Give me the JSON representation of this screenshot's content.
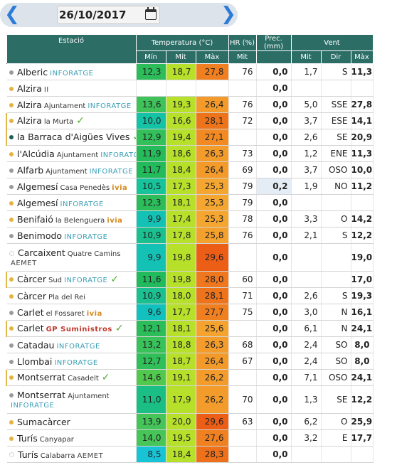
{
  "date": {
    "value": "26/10/2017",
    "prev_icon": "chevron-left-icon",
    "next_icon": "chevron-right-icon",
    "calendar_icon": "calendar-icon"
  },
  "columns": {
    "station": "Estació",
    "temperature": "Temperatura (°C)",
    "hr": "HR (%)",
    "prec": "Prec. (mm)",
    "wind": "Vent",
    "t_min": "Mín",
    "t_mit": "Mit",
    "t_max": "Màx",
    "hr_mit": "Mit",
    "w_mit": "Mit",
    "w_dir": "Dir",
    "w_max": "Màx"
  },
  "colors": {
    "header": "#2c6d66",
    "t_min_scale": [
      "#1db85a",
      "#4bc65a",
      "#8fd24a",
      "#14c1a8",
      "#2fd0b0"
    ],
    "t_mit": "#b6e02a",
    "t_max": "#f08a22"
  },
  "rows": [
    {
      "name": "Alberic",
      "loc": "",
      "src": "INFORATGE",
      "srcType": "info",
      "check": false,
      "dot": "gray",
      "mark": false,
      "tmin": "12,3",
      "tmit": "18,7",
      "tmax": "27,8",
      "tminColor": "#2cbd5a",
      "tmaxColor": "#f07f1f",
      "hr": "76",
      "prec": "0,0",
      "wet": false,
      "wmit": "1,7",
      "wdir": "S",
      "wmax": "11,3"
    },
    {
      "name": "Alzira",
      "loc": "",
      "src": "II",
      "srcType": "aemet",
      "check": false,
      "dot": "gold",
      "mark": false,
      "tmin": "",
      "tmit": "",
      "tmax": "",
      "tminColor": "",
      "tmaxColor": "",
      "hr": "",
      "prec": "0,0",
      "wet": false,
      "wmit": "",
      "wdir": "",
      "wmax": ""
    },
    {
      "name": "Alzira",
      "loc": "Ajuntament",
      "src": "INFORATGE",
      "srcType": "info",
      "check": false,
      "dot": "gold",
      "mark": false,
      "tmin": "13,6",
      "tmit": "19,3",
      "tmax": "26,4",
      "tminColor": "#3fc25a",
      "tmaxColor": "#f39a2a",
      "hr": "76",
      "prec": "0,0",
      "wet": false,
      "wmit": "5,0",
      "wdir": "SSE",
      "wmax": "27,8"
    },
    {
      "name": "Alzira",
      "loc": "la Murta",
      "src": "",
      "srcType": "",
      "check": true,
      "dot": "gold",
      "mark": true,
      "tmin": "10,0",
      "tmit": "16,6",
      "tmax": "28,1",
      "tminColor": "#14c3a6",
      "tmaxColor": "#ee741c",
      "hr": "72",
      "prec": "0,0",
      "wet": false,
      "wmit": "3,7",
      "wdir": "ESE",
      "wmax": "14,1"
    },
    {
      "name": "la Barraca d'Aigües Vives",
      "loc": "",
      "src": "",
      "srcType": "",
      "check": true,
      "dot": "teal",
      "mark": true,
      "tmin": "12,9",
      "tmit": "19,4",
      "tmax": "27,1",
      "tminColor": "#33bf5a",
      "tmaxColor": "#f28a24",
      "hr": "",
      "prec": "0,0",
      "wet": false,
      "wmit": "2,6",
      "wdir": "SE",
      "wmax": "20,9"
    },
    {
      "name": "l'Alcúdia",
      "loc": "Ajuntament",
      "src": "INFORATGE",
      "srcType": "info",
      "check": false,
      "dot": "gold",
      "mark": false,
      "tmin": "11,9",
      "tmit": "18,6",
      "tmax": "26,3",
      "tminColor": "#26bb5a",
      "tmaxColor": "#f39b2b",
      "hr": "73",
      "prec": "0,0",
      "wet": false,
      "wmit": "1,2",
      "wdir": "ENE",
      "wmax": "11,3"
    },
    {
      "name": "Alfarb",
      "loc": "Ajuntament",
      "src": "INFORATGE",
      "srcType": "info",
      "check": false,
      "dot": "gray",
      "mark": false,
      "tmin": "11,7",
      "tmit": "18,4",
      "tmax": "26,4",
      "tminColor": "#22ba5b",
      "tmaxColor": "#f39a2a",
      "hr": "69",
      "prec": "0,0",
      "wet": false,
      "wmit": "3,7",
      "wdir": "OSO",
      "wmax": "10,0"
    },
    {
      "name": "Algemesí",
      "loc": "Casa Penedès",
      "src": "ivia",
      "srcType": "ivia",
      "check": false,
      "dot": "gray",
      "mark": false,
      "tmin": "10,5",
      "tmit": "17,3",
      "tmax": "25,3",
      "tminColor": "#17c39b",
      "tmaxColor": "#f5a630",
      "hr": "79",
      "prec": "0,2",
      "wet": true,
      "wmit": "1,9",
      "wdir": "NO",
      "wmax": "11,2"
    },
    {
      "name": "Algemesí",
      "loc": "",
      "src": "INFORATGE",
      "srcType": "info",
      "check": false,
      "dot": "gold",
      "mark": false,
      "tmin": "12,3",
      "tmit": "18,1",
      "tmax": "25,3",
      "tminColor": "#2cbd5a",
      "tmaxColor": "#f5a630",
      "hr": "79",
      "prec": "0,0",
      "wet": false,
      "wmit": "",
      "wdir": "",
      "wmax": ""
    },
    {
      "name": "Benifaió",
      "loc": "la Belenguera",
      "src": "ivia",
      "srcType": "ivia",
      "check": false,
      "dot": "gold",
      "mark": false,
      "tmin": "9,9",
      "tmit": "17,4",
      "tmax": "25,3",
      "tminColor": "#13c2b4",
      "tmaxColor": "#f5a630",
      "hr": "78",
      "prec": "0,0",
      "wet": false,
      "wmit": "3,3",
      "wdir": "O",
      "wmax": "14,2"
    },
    {
      "name": "Benimodo",
      "loc": "",
      "src": "INFORATGE",
      "srcType": "info",
      "check": false,
      "dot": "gray",
      "mark": false,
      "tmin": "10,9",
      "tmit": "17,8",
      "tmax": "25,8",
      "tminColor": "#1ac090",
      "tmaxColor": "#f4a02c",
      "hr": "76",
      "prec": "0,0",
      "wet": false,
      "wmit": "2,1",
      "wdir": "S",
      "wmax": "12,2"
    },
    {
      "name": "Carcaixent",
      "loc": "Quatre Camins",
      "src": "AEMET",
      "srcType": "aemet",
      "check": false,
      "dot": "hollow",
      "mark": false,
      "tall": true,
      "tmin": "9,9",
      "tmit": "19,8",
      "tmax": "29,6",
      "tminColor": "#13c2b4",
      "tmaxColor": "#ec5d16",
      "hr": "",
      "prec": "0,0",
      "wet": false,
      "wmit": "",
      "wdir": "",
      "wmax": "19,0"
    },
    {
      "name": "Càrcer",
      "loc": "Sud",
      "src": "INFORATGE",
      "srcType": "info",
      "check": true,
      "dot": "gold",
      "mark": true,
      "tmin": "11,6",
      "tmit": "19,8",
      "tmax": "28,0",
      "tminColor": "#21ba5d",
      "tmaxColor": "#ef771d",
      "hr": "60",
      "prec": "0,0",
      "wet": false,
      "wmit": "",
      "wdir": "",
      "wmax": "17,0"
    },
    {
      "name": "Càrcer",
      "loc": "Pla del Rei",
      "src": "",
      "srcType": "",
      "check": false,
      "dot": "gold",
      "mark": false,
      "tmin": "10,9",
      "tmit": "18,0",
      "tmax": "28,1",
      "tminColor": "#1ac090",
      "tmaxColor": "#ee741c",
      "hr": "71",
      "prec": "0,0",
      "wet": false,
      "wmit": "2,6",
      "wdir": "S",
      "wmax": "19,3"
    },
    {
      "name": "Carlet",
      "loc": "el Fossaret",
      "src": "ivia",
      "srcType": "ivia",
      "check": false,
      "dot": "gray",
      "mark": false,
      "tmin": "9,6",
      "tmit": "17,7",
      "tmax": "27,7",
      "tminColor": "#12c0bd",
      "tmaxColor": "#f07f1f",
      "hr": "75",
      "prec": "0,0",
      "wet": false,
      "wmit": "3,0",
      "wdir": "N",
      "wmax": "16,1"
    },
    {
      "name": "Carlet",
      "loc": "",
      "src": "GP Suministros",
      "srcType": "gp",
      "check": true,
      "dot": "gold",
      "mark": true,
      "tmin": "12,1",
      "tmit": "18,1",
      "tmax": "25,6",
      "tminColor": "#2abd5a",
      "tmaxColor": "#f4a32e",
      "hr": "",
      "prec": "0,0",
      "wet": false,
      "wmit": "6,1",
      "wdir": "N",
      "wmax": "24,1"
    },
    {
      "name": "Catadau",
      "loc": "",
      "src": "INFORATGE",
      "srcType": "info",
      "check": false,
      "dot": "gray",
      "mark": false,
      "tmin": "13,2",
      "tmit": "18,8",
      "tmax": "26,3",
      "tminColor": "#39c15a",
      "tmaxColor": "#f39b2b",
      "hr": "68",
      "prec": "0,0",
      "wet": false,
      "wmit": "2,4",
      "wdir": "SO",
      "wmax": "8,0"
    },
    {
      "name": "Llombai",
      "loc": "",
      "src": "INFORATGE",
      "srcType": "info",
      "check": false,
      "dot": "gray",
      "mark": false,
      "tmin": "12,7",
      "tmit": "18,7",
      "tmax": "26,4",
      "tminColor": "#31bf5a",
      "tmaxColor": "#f39a2a",
      "hr": "67",
      "prec": "0,0",
      "wet": false,
      "wmit": "2,4",
      "wdir": "SO",
      "wmax": "8,0"
    },
    {
      "name": "Montserrat",
      "loc": "Casadelt",
      "src": "",
      "srcType": "",
      "check": true,
      "dot": "gold",
      "mark": true,
      "tmin": "14,6",
      "tmit": "19,1",
      "tmax": "26,2",
      "tminColor": "#52c84f",
      "tmaxColor": "#f39c2b",
      "hr": "",
      "prec": "0,0",
      "wet": false,
      "wmit": "7,1",
      "wdir": "OSO",
      "wmax": "24,1"
    },
    {
      "name": "Montserrat",
      "loc": "Ajuntament",
      "src": "INFORATGE",
      "srcType": "info",
      "check": false,
      "dot": "gray",
      "mark": false,
      "tall": true,
      "tmin": "11,0",
      "tmit": "17,9",
      "tmax": "26,2",
      "tminColor": "#1bbf85",
      "tmaxColor": "#f39c2b",
      "hr": "70",
      "prec": "0,0",
      "wet": false,
      "wmit": "1,3",
      "wdir": "SE",
      "wmax": "12,2"
    },
    {
      "name": "Sumacàrcer",
      "loc": "",
      "src": "",
      "srcType": "",
      "check": false,
      "dot": "gold",
      "mark": false,
      "tmin": "13,9",
      "tmit": "20,0",
      "tmax": "29,6",
      "tminColor": "#45c459",
      "tmaxColor": "#ec5d16",
      "hr": "63",
      "prec": "0,0",
      "wet": false,
      "wmit": "6,2",
      "wdir": "O",
      "wmax": "25,9"
    },
    {
      "name": "Turís",
      "loc": "Canyapar",
      "src": "",
      "srcType": "",
      "check": false,
      "dot": "gold",
      "mark": false,
      "tmin": "14,0",
      "tmit": "19,5",
      "tmax": "27,6",
      "tminColor": "#47c559",
      "tmaxColor": "#f08120",
      "hr": "",
      "prec": "0,0",
      "wet": false,
      "wmit": "3,2",
      "wdir": "E",
      "wmax": "17,7"
    },
    {
      "name": "Turís",
      "loc": "Calabarra",
      "src": "AEMET",
      "srcType": "aemet",
      "check": false,
      "dot": "hollow",
      "mark": false,
      "tmin": "8,5",
      "tmit": "18,4",
      "tmax": "28,3",
      "tminColor": "#19c3d6",
      "tmaxColor": "#ee701b",
      "hr": "",
      "prec": "0,0",
      "wet": false,
      "wmit": "",
      "wdir": "",
      "wmax": ""
    }
  ]
}
